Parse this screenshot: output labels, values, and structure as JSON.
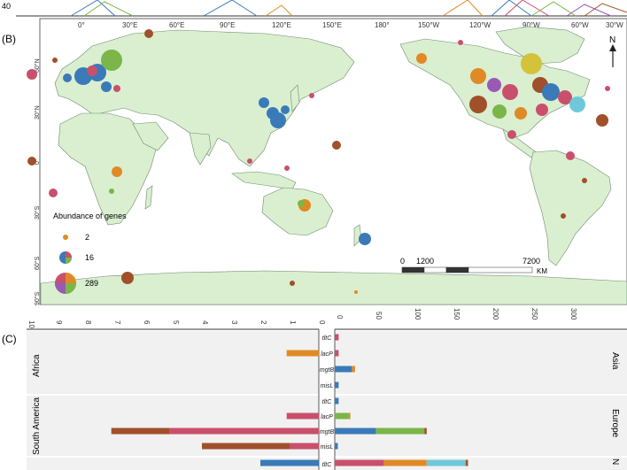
{
  "panel_labels": {
    "b": "(B)",
    "c": "(C)"
  },
  "top_strip": {
    "tick_labels": [
      "40"
    ]
  },
  "map": {
    "lon_labels": [
      "0°",
      "30°E",
      "60°E",
      "90°E",
      "120°E",
      "150°E",
      "180°",
      "150°W",
      "120°W",
      "90°W",
      "60°W",
      "30°W"
    ],
    "lat_labels": [
      "60°N",
      "30°N",
      "0°",
      "30°S",
      "60°S",
      "90°S"
    ],
    "north_label": "N",
    "legend": {
      "title": "Abundance of genes",
      "items": [
        {
          "label": "2"
        },
        {
          "label": "16"
        },
        {
          "label": "289"
        }
      ]
    },
    "scale_bar": {
      "labels": [
        "0",
        "1200",
        "7200"
      ],
      "unit": "KM"
    },
    "colors": {
      "ocean": "#ffffff",
      "land": "#d9efd0",
      "border": "#6e8a6e"
    }
  },
  "bar_panel": {
    "left_axis": {
      "ticks": [
        "10",
        "9",
        "8",
        "7",
        "6",
        "5",
        "4",
        "3",
        "2",
        "1",
        "0"
      ]
    },
    "right_axis": {
      "ticks": [
        "0",
        "50",
        "100",
        "150",
        "200",
        "250",
        "300"
      ]
    },
    "left_regions": [
      "Africa",
      "South America"
    ],
    "right_regions": [
      "Asia",
      "Europe",
      "N"
    ],
    "gene_labels": [
      "tltC",
      "lacP",
      "mgtB",
      "misL",
      "tltC",
      "lacP",
      "mgtB",
      "misL",
      "tltC"
    ],
    "colors": {
      "blue": "#3a7ab8",
      "orange": "#e08a26",
      "green": "#7ab648",
      "crimson": "#c9506c",
      "brown": "#a0502a",
      "cyan": "#6ec8dc",
      "panel_bg": "#f1f1f1"
    }
  },
  "chart_data": {
    "type": "bar",
    "categories": [
      "tltC",
      "lacP",
      "mgtB",
      "misL",
      "tltC",
      "lacP",
      "mgtB",
      "misL",
      "tltC"
    ],
    "left_xlim": [
      0,
      10
    ],
    "right_xlim": [
      0,
      300
    ],
    "left_bars": [
      {
        "row": 1,
        "segments": [
          {
            "color": "orange",
            "value": 1.1
          }
        ]
      },
      {
        "row": 5,
        "segments": [
          {
            "color": "crimson",
            "value": 1.1
          }
        ]
      },
      {
        "row": 6,
        "segments": [
          {
            "color": "crimson",
            "value": 5.1
          },
          {
            "color": "brown",
            "value": 2.0
          }
        ]
      },
      {
        "row": 7,
        "segments": [
          {
            "color": "crimson",
            "value": 1.0
          },
          {
            "color": "brown",
            "value": 3.0
          }
        ]
      },
      {
        "row": 8,
        "segments": [
          {
            "color": "blue",
            "value": 2.0
          }
        ]
      }
    ],
    "right_bars": [
      {
        "row": 0,
        "segments": [
          {
            "color": "crimson",
            "value": 5
          }
        ]
      },
      {
        "row": 1,
        "segments": [
          {
            "color": "crimson",
            "value": 5
          }
        ]
      },
      {
        "row": 2,
        "segments": [
          {
            "color": "blue",
            "value": 22
          },
          {
            "color": "orange",
            "value": 4
          }
        ]
      },
      {
        "row": 3,
        "segments": [
          {
            "color": "blue",
            "value": 5
          }
        ]
      },
      {
        "row": 4,
        "segments": [
          {
            "color": "blue",
            "value": 5
          }
        ]
      },
      {
        "row": 5,
        "segments": [
          {
            "color": "green",
            "value": 18
          },
          {
            "color": "orange",
            "value": 2
          }
        ]
      },
      {
        "row": 6,
        "segments": [
          {
            "color": "blue",
            "value": 53
          },
          {
            "color": "green",
            "value": 62
          },
          {
            "color": "brown",
            "value": 3
          }
        ]
      },
      {
        "row": 7,
        "segments": [
          {
            "color": "blue",
            "value": 4
          }
        ]
      },
      {
        "row": 8,
        "segments": [
          {
            "color": "crimson",
            "value": 63
          },
          {
            "color": "orange",
            "value": 55
          },
          {
            "color": "cyan",
            "value": 50
          },
          {
            "color": "brown",
            "value": 3
          }
        ]
      }
    ]
  }
}
